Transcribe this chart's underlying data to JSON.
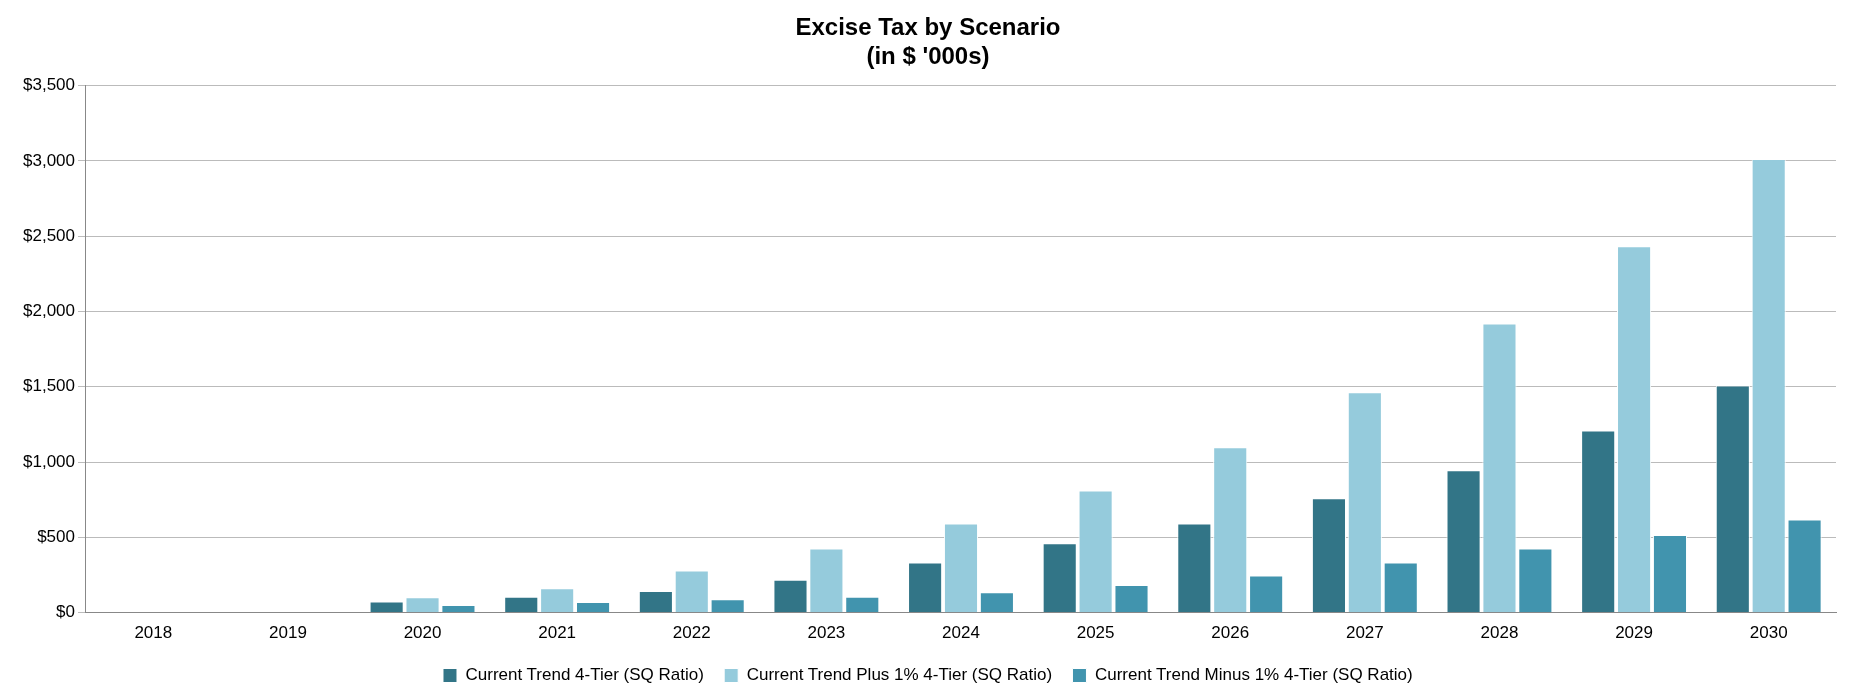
{
  "chart_data": {
    "type": "bar",
    "title": "Excise Tax by Scenario\n(in $ '000s)",
    "categories": [
      "2018",
      "2019",
      "2020",
      "2021",
      "2022",
      "2023",
      "2024",
      "2025",
      "2026",
      "2027",
      "2028",
      "2029",
      "2030"
    ],
    "series": [
      {
        "name": "Current Trend 4-Tier (SQ Ratio)",
        "color": "#327587",
        "values": [
          null,
          null,
          73,
          105,
          143,
          218,
          332,
          461,
          591,
          759,
          946,
          1210,
          1508
        ]
      },
      {
        "name": "Current Trend Plus 1% 4-Tier (SQ Ratio)",
        "color": "#95cbdc",
        "values": [
          null,
          null,
          102,
          162,
          280,
          425,
          591,
          811,
          1098,
          1464,
          1920,
          2433,
          3013
        ]
      },
      {
        "name": "Current Trend Minus 1% 4-Tier (SQ Ratio)",
        "color": "#4194ae",
        "values": [
          null,
          null,
          51,
          70,
          89,
          106,
          135,
          184,
          246,
          332,
          425,
          516,
          619
        ]
      }
    ],
    "ylim": [
      0,
      3500
    ],
    "yticks": [
      {
        "value": 0,
        "label": "$0"
      },
      {
        "value": 500,
        "label": "$500"
      },
      {
        "value": 1000,
        "label": "$1,000"
      },
      {
        "value": 1500,
        "label": "$1,500"
      },
      {
        "value": 2000,
        "label": "$2,000"
      },
      {
        "value": 2500,
        "label": "$2,500"
      },
      {
        "value": 3000,
        "label": "$3,000"
      },
      {
        "value": 3500,
        "label": "$3,500"
      }
    ],
    "grid": "y",
    "legend": "bottom"
  }
}
